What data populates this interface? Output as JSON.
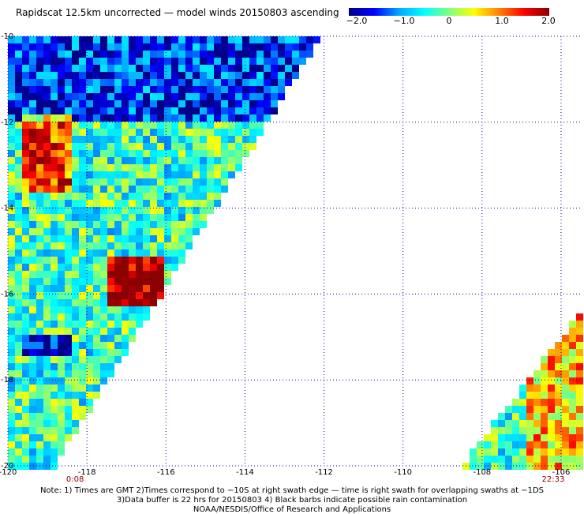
{
  "title": "Rapidscat 12.5km uncorrected — model winds 20150803 ascending",
  "colorbar": {
    "colors": [
      "#00008b",
      "#0000ff",
      "#00aaff",
      "#00ffff",
      "#7fff7f",
      "#ffff00",
      "#ff7f00",
      "#ff0000",
      "#8b0000"
    ],
    "tick_labels": [
      "−2.0",
      "−1.0",
      "0",
      "1.0",
      "2.0"
    ],
    "tick_values": [
      -2.0,
      -1.0,
      0,
      1.0,
      2.0
    ],
    "range": [
      -2.0,
      2.0
    ]
  },
  "map": {
    "lon_range": [
      -120,
      -105.5
    ],
    "lat_range": [
      -20,
      -10
    ],
    "lon_tick_labels": [
      "-120",
      "-118",
      "-116",
      "-114",
      "-112",
      "-110",
      "-108",
      "-106"
    ],
    "lon_tick_values": [
      -120,
      -118,
      -116,
      -114,
      -112,
      -110,
      -108,
      -106
    ],
    "lat_tick_labels": [
      "-10",
      "-12",
      "-14",
      "-16",
      "-18",
      "-20"
    ],
    "lat_tick_values": [
      -10,
      -12,
      -14,
      -16,
      -18,
      -20
    ],
    "swath_times": [
      {
        "label": "0:08",
        "lon": -118.3
      },
      {
        "label": "22:33",
        "lon": -106.2
      }
    ],
    "grid_color": "#000099",
    "time_color": "#8b0000"
  },
  "notes": {
    "line1": "Note: 1) Times are GMT 2)Times correspond to −10S at right swath edge — time is right swath for overlapping swaths at −1DS",
    "line2": "3)Data buffer is 22 hrs for 20150803 4) Black barbs indicate possible rain contamination",
    "line3": "NOAA/NESDIS/Office of Research and Applications"
  }
}
